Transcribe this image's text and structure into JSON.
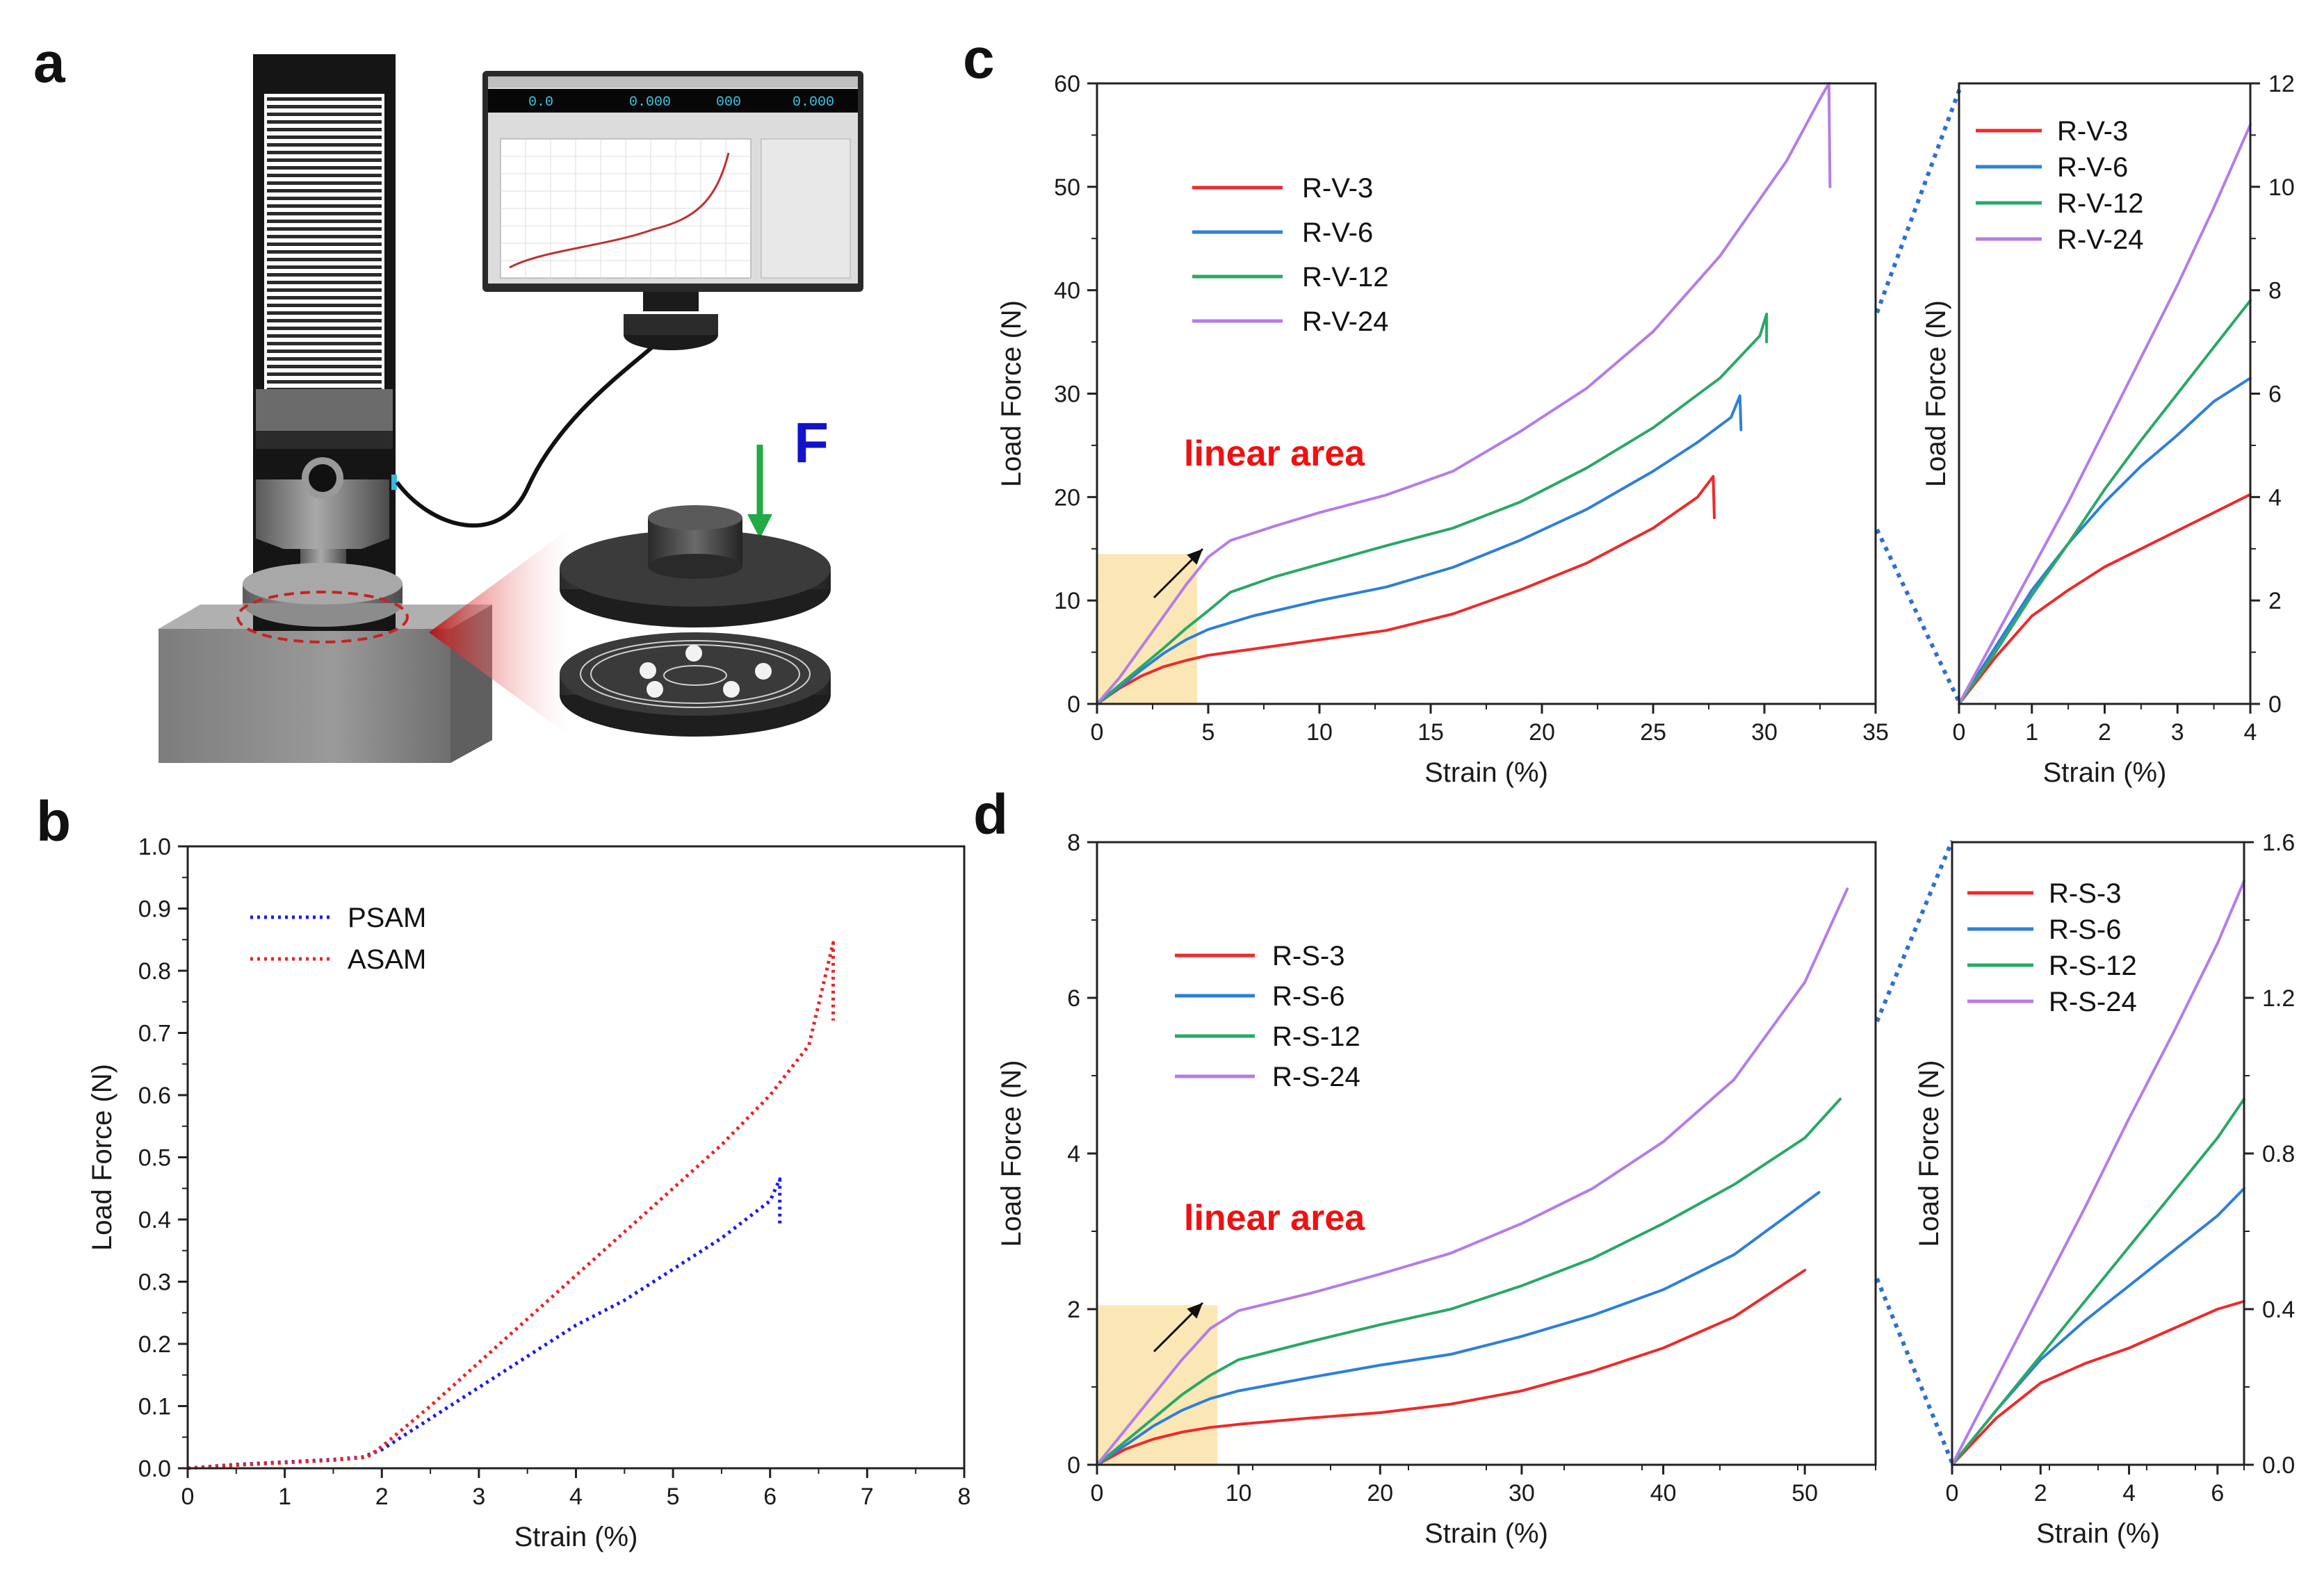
{
  "panels": {
    "a": "a",
    "b": "b",
    "c": "c",
    "d": "d"
  },
  "apparatus": {
    "force_label": "F",
    "screen_readouts": [
      "0.0",
      "0.000",
      "000",
      "0.000"
    ]
  },
  "colors": {
    "red": "#ee2a2a",
    "blue": "#2e7fd8",
    "green": "#2aa866",
    "purple": "#b57ce8",
    "psam": "#1a1aee",
    "asam": "#ee2222",
    "highlight": "#fbe7b5",
    "axis": "#222222"
  },
  "chart_data": [
    {
      "id": "b",
      "type": "line",
      "xlabel": "Strain (%)",
      "ylabel": "Load Force (N)",
      "xlim": [
        0,
        8
      ],
      "ylim": [
        0,
        1.0
      ],
      "xticks": [
        "0",
        "1",
        "2",
        "3",
        "4",
        "5",
        "6",
        "7",
        "8"
      ],
      "yticks": [
        "0.0",
        "0.1",
        "0.2",
        "0.3",
        "0.4",
        "0.5",
        "0.6",
        "0.7",
        "0.8",
        "0.9",
        "1.0"
      ],
      "legend_position": "top-left",
      "line_style": "dotted",
      "series": [
        {
          "name": "PSAM",
          "color": "#1a1aee",
          "x": [
            0,
            0.5,
            1,
            1.5,
            1.8,
            2,
            2.5,
            3,
            3.5,
            4,
            4.5,
            5,
            5.5,
            6,
            6.1,
            6.1
          ],
          "y": [
            0,
            0.006,
            0.01,
            0.014,
            0.018,
            0.03,
            0.08,
            0.13,
            0.18,
            0.23,
            0.27,
            0.32,
            0.37,
            0.43,
            0.465,
            0.39
          ]
        },
        {
          "name": "ASAM",
          "color": "#ee2222",
          "x": [
            0,
            0.5,
            1,
            1.5,
            1.85,
            2,
            2.5,
            3,
            3.5,
            4,
            4.5,
            5,
            5.5,
            6,
            6.4,
            6.65,
            6.65
          ],
          "y": [
            0,
            0.005,
            0.009,
            0.013,
            0.018,
            0.035,
            0.1,
            0.17,
            0.24,
            0.31,
            0.38,
            0.45,
            0.52,
            0.6,
            0.68,
            0.845,
            0.72
          ]
        }
      ]
    },
    {
      "id": "c",
      "type": "line",
      "xlabel": "Strain (%)",
      "ylabel": "Load Force (N)",
      "xlim": [
        0,
        35
      ],
      "ylim": [
        0,
        60
      ],
      "xticks": [
        "0",
        "5",
        "10",
        "15",
        "20",
        "25",
        "30",
        "35"
      ],
      "yticks": [
        "0",
        "10",
        "20",
        "30",
        "40",
        "50",
        "60"
      ],
      "legend_position": "top-left",
      "annotation": "linear area",
      "highlight": {
        "x": [
          0,
          4.5
        ],
        "y": [
          0,
          14.5
        ]
      },
      "series": [
        {
          "name": "R-V-3",
          "color": "#ee2a2a",
          "x": [
            0,
            1,
            2,
            3,
            4,
            5,
            7,
            10,
            13,
            16,
            19,
            22,
            25,
            27,
            27.7,
            27.75
          ],
          "y": [
            0,
            1.5,
            2.7,
            3.6,
            4.2,
            4.7,
            5.3,
            6.2,
            7.1,
            8.7,
            11.0,
            13.6,
            17.0,
            20.0,
            22.0,
            18.0
          ]
        },
        {
          "name": "R-V-6",
          "color": "#2e7fd8",
          "x": [
            0,
            1,
            2,
            3,
            4,
            5,
            7,
            10,
            13,
            16,
            19,
            22,
            25,
            27,
            28.5,
            28.9,
            28.95
          ],
          "y": [
            0,
            1.6,
            3.3,
            4.9,
            6.2,
            7.2,
            8.5,
            10.0,
            11.3,
            13.2,
            15.8,
            18.8,
            22.5,
            25.3,
            27.7,
            29.8,
            26.5
          ]
        },
        {
          "name": "R-V-12",
          "color": "#2aa866",
          "x": [
            0,
            1,
            2,
            3,
            4,
            5,
            6,
            8,
            10,
            13,
            16,
            19,
            22,
            25,
            28,
            29.8,
            30.1,
            30.1
          ],
          "y": [
            0,
            1.8,
            3.6,
            5.4,
            7.3,
            9.0,
            10.8,
            12.3,
            13.5,
            15.3,
            17.0,
            19.5,
            22.8,
            26.7,
            31.5,
            35.6,
            37.7,
            35.0
          ]
        },
        {
          "name": "R-V-24",
          "color": "#b57ce8",
          "x": [
            0,
            1,
            2,
            3,
            4,
            5,
            6,
            8,
            10,
            13,
            16,
            19,
            22,
            25,
            28,
            31,
            32.5,
            32.9,
            32.95
          ],
          "y": [
            0,
            2.5,
            5.5,
            8.5,
            11.5,
            14.2,
            15.8,
            17.2,
            18.5,
            20.2,
            22.5,
            26.3,
            30.5,
            36.0,
            43.3,
            52.5,
            58.5,
            60.0,
            50.0
          ]
        }
      ]
    },
    {
      "id": "c-inset",
      "type": "line",
      "xlabel": "Strain (%)",
      "ylabel": "Load Force (N)",
      "xlim": [
        0,
        4
      ],
      "ylim": [
        0,
        12
      ],
      "y_axis_side": "right",
      "xticks": [
        "0",
        "1",
        "2",
        "3",
        "4"
      ],
      "yticks": [
        "0",
        "2",
        "4",
        "6",
        "8",
        "10",
        "12"
      ],
      "legend_position": "top-left",
      "series": [
        {
          "name": "R-V-3",
          "color": "#ee2a2a",
          "x": [
            0,
            0.5,
            1,
            1.5,
            2,
            2.5,
            3,
            3.5,
            4
          ],
          "y": [
            0,
            0.9,
            1.7,
            2.2,
            2.65,
            3.0,
            3.35,
            3.7,
            4.05
          ]
        },
        {
          "name": "R-V-6",
          "color": "#2e7fd8",
          "x": [
            0,
            0.5,
            1,
            1.5,
            2,
            2.5,
            3,
            3.5,
            4
          ],
          "y": [
            0,
            1.1,
            2.2,
            3.1,
            3.9,
            4.6,
            5.2,
            5.85,
            6.3
          ]
        },
        {
          "name": "R-V-12",
          "color": "#2aa866",
          "x": [
            0,
            0.5,
            1,
            1.5,
            2,
            2.5,
            3,
            3.5,
            4
          ],
          "y": [
            0,
            1.0,
            2.1,
            3.1,
            4.15,
            5.1,
            6.0,
            6.9,
            7.8
          ]
        },
        {
          "name": "R-V-24",
          "color": "#b57ce8",
          "x": [
            0,
            0.5,
            1,
            1.5,
            2,
            2.5,
            3,
            3.5,
            4
          ],
          "y": [
            0,
            1.3,
            2.6,
            3.9,
            5.3,
            6.7,
            8.1,
            9.6,
            11.2
          ]
        }
      ]
    },
    {
      "id": "d",
      "type": "line",
      "xlabel": "Strain (%)",
      "ylabel": "Load Force (N)",
      "xlim": [
        0,
        55
      ],
      "ylim": [
        0,
        8
      ],
      "xticks": [
        "0",
        "10",
        "20",
        "30",
        "40",
        "50"
      ],
      "yticks": [
        "0",
        "2",
        "4",
        "6",
        "8"
      ],
      "legend_position": "top-left",
      "annotation": "linear area",
      "highlight": {
        "x": [
          0,
          8.5
        ],
        "y": [
          0,
          2.05
        ]
      },
      "series": [
        {
          "name": "R-S-3",
          "color": "#ee2a2a",
          "x": [
            0,
            2,
            4,
            6,
            8,
            10,
            15,
            20,
            25,
            30,
            35,
            40,
            45,
            50
          ],
          "y": [
            0,
            0.2,
            0.33,
            0.42,
            0.48,
            0.52,
            0.6,
            0.67,
            0.78,
            0.95,
            1.2,
            1.5,
            1.9,
            2.5
          ]
        },
        {
          "name": "R-S-6",
          "color": "#2e7fd8",
          "x": [
            0,
            2,
            4,
            6,
            8,
            10,
            15,
            20,
            25,
            30,
            35,
            40,
            45,
            51
          ],
          "y": [
            0,
            0.25,
            0.5,
            0.7,
            0.85,
            0.95,
            1.12,
            1.28,
            1.42,
            1.65,
            1.92,
            2.25,
            2.7,
            3.5
          ]
        },
        {
          "name": "R-S-12",
          "color": "#2aa866",
          "x": [
            0,
            2,
            4,
            6,
            8,
            10,
            15,
            20,
            25,
            30,
            35,
            40,
            45,
            50,
            52.5
          ],
          "y": [
            0,
            0.3,
            0.6,
            0.9,
            1.15,
            1.35,
            1.58,
            1.8,
            2.0,
            2.3,
            2.65,
            3.1,
            3.6,
            4.2,
            4.7
          ]
        },
        {
          "name": "R-S-24",
          "color": "#b57ce8",
          "x": [
            0,
            2,
            4,
            6,
            8,
            10,
            15,
            20,
            25,
            30,
            35,
            40,
            45,
            50,
            53
          ],
          "y": [
            0,
            0.45,
            0.9,
            1.35,
            1.75,
            1.98,
            2.2,
            2.45,
            2.72,
            3.1,
            3.55,
            4.15,
            4.95,
            6.2,
            7.4
          ]
        }
      ]
    },
    {
      "id": "d-inset",
      "type": "line",
      "xlabel": "Strain (%)",
      "ylabel": "Load Force (N)",
      "xlim": [
        0,
        6.6
      ],
      "ylim": [
        0,
        1.6
      ],
      "y_axis_side": "right",
      "xticks": [
        "0",
        "2",
        "4",
        "6"
      ],
      "yticks": [
        "0.0",
        "0.4",
        "0.8",
        "1.2",
        "1.6"
      ],
      "legend_position": "top-left",
      "series": [
        {
          "name": "R-S-3",
          "color": "#ee2a2a",
          "x": [
            0,
            0.5,
            1,
            2,
            3,
            4,
            5,
            6,
            6.6
          ],
          "y": [
            0,
            0.06,
            0.12,
            0.21,
            0.26,
            0.3,
            0.35,
            0.4,
            0.42
          ]
        },
        {
          "name": "R-S-6",
          "color": "#2e7fd8",
          "x": [
            0,
            0.5,
            1,
            2,
            3,
            4,
            5,
            6,
            6.6
          ],
          "y": [
            0,
            0.07,
            0.14,
            0.27,
            0.37,
            0.46,
            0.55,
            0.64,
            0.71
          ]
        },
        {
          "name": "R-S-12",
          "color": "#2aa866",
          "x": [
            0,
            0.5,
            1,
            2,
            3,
            4,
            5,
            6,
            6.6
          ],
          "y": [
            0,
            0.07,
            0.14,
            0.28,
            0.42,
            0.56,
            0.7,
            0.84,
            0.94
          ]
        },
        {
          "name": "R-S-24",
          "color": "#b57ce8",
          "x": [
            0,
            0.5,
            1,
            2,
            3,
            4,
            5,
            6,
            6.6
          ],
          "y": [
            0,
            0.11,
            0.22,
            0.44,
            0.66,
            0.89,
            1.11,
            1.34,
            1.5
          ]
        }
      ]
    }
  ]
}
